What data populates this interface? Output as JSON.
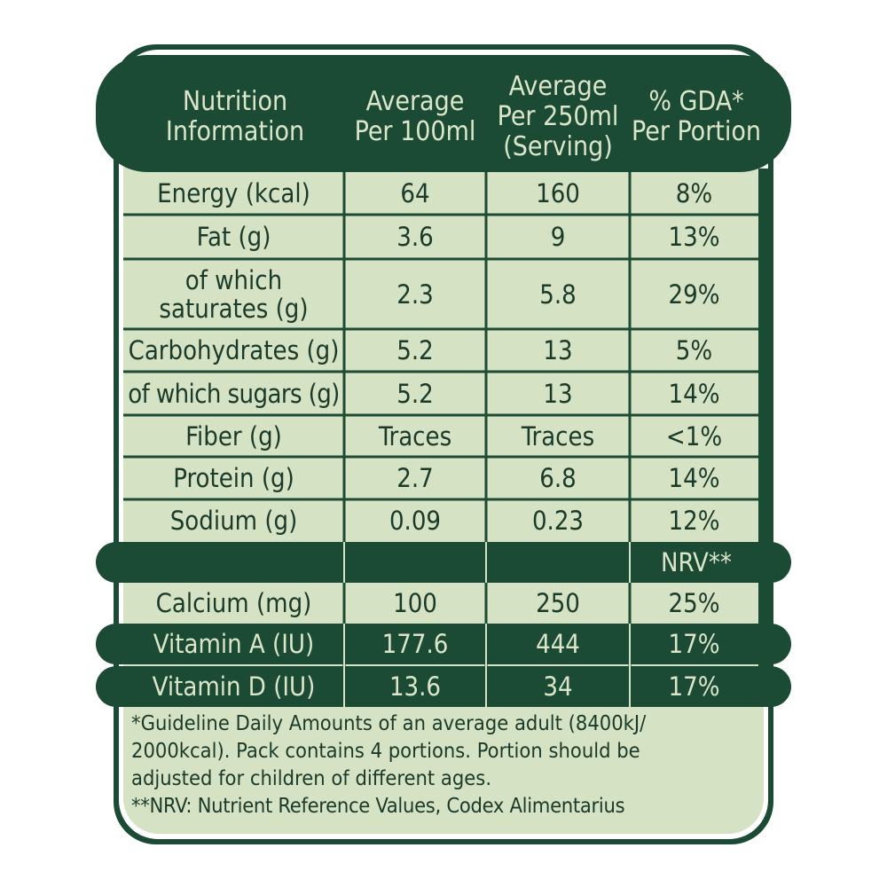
{
  "header": {
    "col1": "Nutrition\nInformation",
    "col2": "Average\nPer 100ml",
    "col3": "Average\nPer 250ml\n(Serving)",
    "col4": "% GDA*\nPer Portion"
  },
  "rows": [
    {
      "nutrient": "Energy (kcal)",
      "per100": "64",
      "per250": "160",
      "pct": "8%"
    },
    {
      "nutrient": "Fat (g)",
      "per100": "3.6",
      "per250": "9",
      "pct": "13%"
    },
    {
      "nutrient": "of which\nsaturates (g)",
      "per100": "2.3",
      "per250": "5.8",
      "pct": "29%"
    },
    {
      "nutrient": "Carbohydrates (g)",
      "per100": "5.2",
      "per250": "13",
      "pct": "5%"
    },
    {
      "nutrient": "of which sugars (g)",
      "per100": "5.2",
      "per250": "13",
      "pct": "14%"
    },
    {
      "nutrient": "Fiber (g)",
      "per100": "Traces",
      "per250": "Traces",
      "pct": "<1%"
    },
    {
      "nutrient": "Protein (g)",
      "per100": "2.7",
      "per250": "6.8",
      "pct": "14%"
    },
    {
      "nutrient": "Sodium (g)",
      "per100": "0.09",
      "per250": "0.23",
      "pct": "12%"
    }
  ],
  "nrv_label": "NRV**",
  "mineral_rows": [
    {
      "nutrient": "Calcium (mg)",
      "per100": "100",
      "per250": "250",
      "pct": "25%"
    },
    {
      "nutrient": "Vitamin A (IU)",
      "per100": "177.6",
      "per250": "444",
      "pct": "17%"
    },
    {
      "nutrient": "Vitamin D (IU)",
      "per100": "13.6",
      "per250": "34",
      "pct": "17%"
    }
  ],
  "footnote": {
    "line1": "*Guideline Daily Amounts of an average adult (8400kJ/",
    "line2": "2000kcal). Pack contains 4 portions. Portion should be",
    "line3": "adjusted for children of different ages.",
    "line4": "**NRV: Nutrient Reference Values, Codex Alimentarius"
  },
  "colors": {
    "dark_green": "#1b4a35",
    "pale_green": "#d5e2c4",
    "text_dark": "#1b3b2a",
    "text_light": "#dbe6c9"
  }
}
